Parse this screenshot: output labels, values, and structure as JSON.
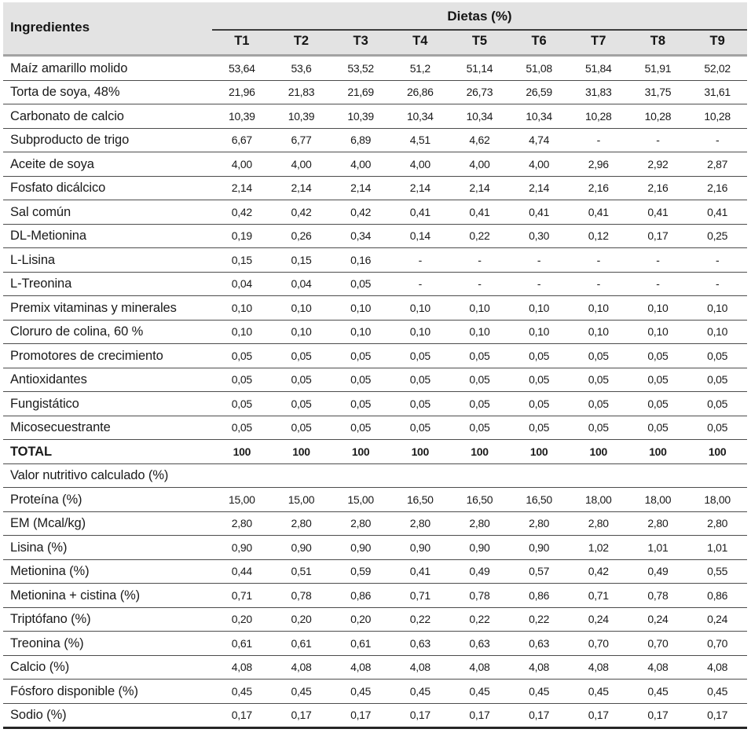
{
  "table": {
    "row_header": "Ingredientes",
    "column_group": "Dietas (%)",
    "columns": [
      "T1",
      "T2",
      "T3",
      "T4",
      "T5",
      "T6",
      "T7",
      "T8",
      "T9"
    ],
    "rows": [
      {
        "label": "Maíz amarillo molido",
        "style": "normal",
        "values": [
          "53,64",
          "53,6",
          "53,52",
          "51,2",
          "51,14",
          "51,08",
          "51,84",
          "51,91",
          "52,02"
        ]
      },
      {
        "label": "Torta de soya, 48%",
        "style": "normal",
        "values": [
          "21,96",
          "21,83",
          "21,69",
          "26,86",
          "26,73",
          "26,59",
          "31,83",
          "31,75",
          "31,61"
        ]
      },
      {
        "label": "Carbonato de calcio",
        "style": "normal",
        "values": [
          "10,39",
          "10,39",
          "10,39",
          "10,34",
          "10,34",
          "10,34",
          "10,28",
          "10,28",
          "10,28"
        ]
      },
      {
        "label": "Subproducto de trigo",
        "style": "normal",
        "values": [
          "6,67",
          "6,77",
          "6,89",
          "4,51",
          "4,62",
          "4,74",
          "-",
          "-",
          "-"
        ]
      },
      {
        "label": "Aceite de soya",
        "style": "normal",
        "values": [
          "4,00",
          "4,00",
          "4,00",
          "4,00",
          "4,00",
          "4,00",
          "2,96",
          "2,92",
          "2,87"
        ]
      },
      {
        "label": "Fosfato dicálcico",
        "style": "normal",
        "values": [
          "2,14",
          "2,14",
          "2,14",
          "2,14",
          "2,14",
          "2,14",
          "2,16",
          "2,16",
          "2,16"
        ]
      },
      {
        "label": "Sal común",
        "style": "normal",
        "values": [
          "0,42",
          "0,42",
          "0,42",
          "0,41",
          "0,41",
          "0,41",
          "0,41",
          "0,41",
          "0,41"
        ]
      },
      {
        "label": "DL-Metionina",
        "style": "normal",
        "values": [
          "0,19",
          "0,26",
          "0,34",
          "0,14",
          "0,22",
          "0,30",
          "0,12",
          "0,17",
          "0,25"
        ]
      },
      {
        "label": "L-Lisina",
        "style": "normal",
        "values": [
          "0,15",
          "0,15",
          "0,16",
          "-",
          "-",
          "-",
          "-",
          "-",
          "-"
        ]
      },
      {
        "label": "L-Treonina",
        "style": "normal",
        "values": [
          "0,04",
          "0,04",
          "0,05",
          "-",
          "-",
          "-",
          "-",
          "-",
          "-"
        ]
      },
      {
        "label": "Premix vitaminas y minerales",
        "style": "normal",
        "values": [
          "0,10",
          "0,10",
          "0,10",
          "0,10",
          "0,10",
          "0,10",
          "0,10",
          "0,10",
          "0,10"
        ]
      },
      {
        "label": "Cloruro de colina, 60 %",
        "style": "normal",
        "values": [
          "0,10",
          "0,10",
          "0,10",
          "0,10",
          "0,10",
          "0,10",
          "0,10",
          "0,10",
          "0,10"
        ]
      },
      {
        "label": "Promotores de crecimiento",
        "style": "normal",
        "values": [
          "0,05",
          "0,05",
          "0,05",
          "0,05",
          "0,05",
          "0,05",
          "0,05",
          "0,05",
          "0,05"
        ]
      },
      {
        "label": "Antioxidantes",
        "style": "normal",
        "values": [
          "0,05",
          "0,05",
          "0,05",
          "0,05",
          "0,05",
          "0,05",
          "0,05",
          "0,05",
          "0,05"
        ]
      },
      {
        "label": "Fungistático",
        "style": "normal",
        "values": [
          "0,05",
          "0,05",
          "0,05",
          "0,05",
          "0,05",
          "0,05",
          "0,05",
          "0,05",
          "0,05"
        ]
      },
      {
        "label": "Micosecuestrante",
        "style": "normal",
        "values": [
          "0,05",
          "0,05",
          "0,05",
          "0,05",
          "0,05",
          "0,05",
          "0,05",
          "0,05",
          "0,05"
        ]
      },
      {
        "label": "TOTAL",
        "style": "bold",
        "values": [
          "100",
          "100",
          "100",
          "100",
          "100",
          "100",
          "100",
          "100",
          "100"
        ]
      },
      {
        "label": "Valor nutritivo calculado (%)",
        "style": "section",
        "values": []
      },
      {
        "label": "Proteína (%)",
        "style": "normal",
        "values": [
          "15,00",
          "15,00",
          "15,00",
          "16,50",
          "16,50",
          "16,50",
          "18,00",
          "18,00",
          "18,00"
        ]
      },
      {
        "label": "EM (Mcal/kg)",
        "style": "normal",
        "values": [
          "2,80",
          "2,80",
          "2,80",
          "2,80",
          "2,80",
          "2,80",
          "2,80",
          "2,80",
          "2,80"
        ]
      },
      {
        "label": "Lisina (%)",
        "style": "normal",
        "values": [
          "0,90",
          "0,90",
          "0,90",
          "0,90",
          "0,90",
          "0,90",
          "1,02",
          "1,01",
          "1,01"
        ]
      },
      {
        "label": "Metionina (%)",
        "style": "normal",
        "values": [
          "0,44",
          "0,51",
          "0,59",
          "0,41",
          "0,49",
          "0,57",
          "0,42",
          "0,49",
          "0,55"
        ]
      },
      {
        "label": "Metionina + cistina (%)",
        "style": "normal",
        "values": [
          "0,71",
          "0,78",
          "0,86",
          "0,71",
          "0,78",
          "0,86",
          "0,71",
          "0,78",
          "0,86"
        ]
      },
      {
        "label": "Triptófano (%)",
        "style": "normal",
        "values": [
          "0,20",
          "0,20",
          "0,20",
          "0,22",
          "0,22",
          "0,22",
          "0,24",
          "0,24",
          "0,24"
        ]
      },
      {
        "label": "Treonina (%)",
        "style": "normal",
        "values": [
          "0,61",
          "0,61",
          "0,61",
          "0,63",
          "0,63",
          "0,63",
          "0,70",
          "0,70",
          "0,70"
        ]
      },
      {
        "label": "Calcio (%)",
        "style": "normal",
        "values": [
          "4,08",
          "4,08",
          "4,08",
          "4,08",
          "4,08",
          "4,08",
          "4,08",
          "4,08",
          "4,08"
        ]
      },
      {
        "label": "Fósforo disponible (%)",
        "style": "normal",
        "values": [
          "0,45",
          "0,45",
          "0,45",
          "0,45",
          "0,45",
          "0,45",
          "0,45",
          "0,45",
          "0,45"
        ]
      },
      {
        "label": "Sodio (%)",
        "style": "normal",
        "values": [
          "0,17",
          "0,17",
          "0,17",
          "0,17",
          "0,17",
          "0,17",
          "0,17",
          "0,17",
          "0,17"
        ]
      }
    ],
    "colors": {
      "header_bg": "#e3e3e3",
      "group_underline": "#3c3c3c",
      "header_separator": "#a3a3a3",
      "row_line": "#4c4c4c",
      "bottom_border": "#262626"
    }
  }
}
